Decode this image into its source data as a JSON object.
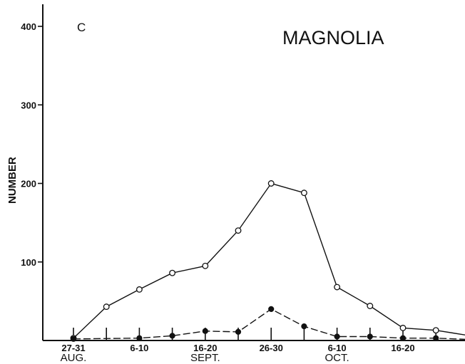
{
  "chart_data": {
    "type": "line",
    "title": "MAGNOLIA",
    "panel_label": "C",
    "ylabel": "NUMBER",
    "xlabel": "",
    "ylim": [
      0,
      430
    ],
    "yticks": [
      {
        "value": 100,
        "label": "100"
      },
      {
        "value": 200,
        "label": "200"
      },
      {
        "value": 300,
        "label": "300"
      },
      {
        "value": 400,
        "label": "400"
      }
    ],
    "x_tick_positions": [
      0,
      1,
      2,
      3,
      4,
      5,
      6,
      7,
      8,
      9,
      10,
      11,
      12
    ],
    "x_tick_labels": [
      {
        "index": 0,
        "label": "27-31"
      },
      {
        "index": 2,
        "label": "6-10"
      },
      {
        "index": 4,
        "label": "16-20"
      },
      {
        "index": 6,
        "label": "26-30"
      },
      {
        "index": 8,
        "label": "6-10"
      },
      {
        "index": 10,
        "label": "16-20"
      }
    ],
    "month_labels": [
      {
        "index": 0,
        "label": "AUG."
      },
      {
        "index": 4,
        "label": "SEPT."
      },
      {
        "index": 8,
        "label": "OCT."
      }
    ],
    "series": [
      {
        "marker": "open",
        "x": [
          0,
          1,
          2,
          3,
          4,
          5,
          6,
          7,
          8,
          9,
          10,
          11,
          12.2
        ],
        "values": [
          3,
          43,
          65,
          86,
          95,
          140,
          200,
          188,
          68,
          44,
          16,
          13,
          5
        ]
      },
      {
        "marker": "filled",
        "x": [
          0,
          2,
          3,
          4,
          5,
          6,
          7,
          8,
          9,
          10,
          11,
          12.2
        ],
        "values": [
          2,
          3,
          6,
          12,
          11,
          40,
          18,
          5,
          5,
          3,
          3,
          1
        ]
      }
    ]
  }
}
